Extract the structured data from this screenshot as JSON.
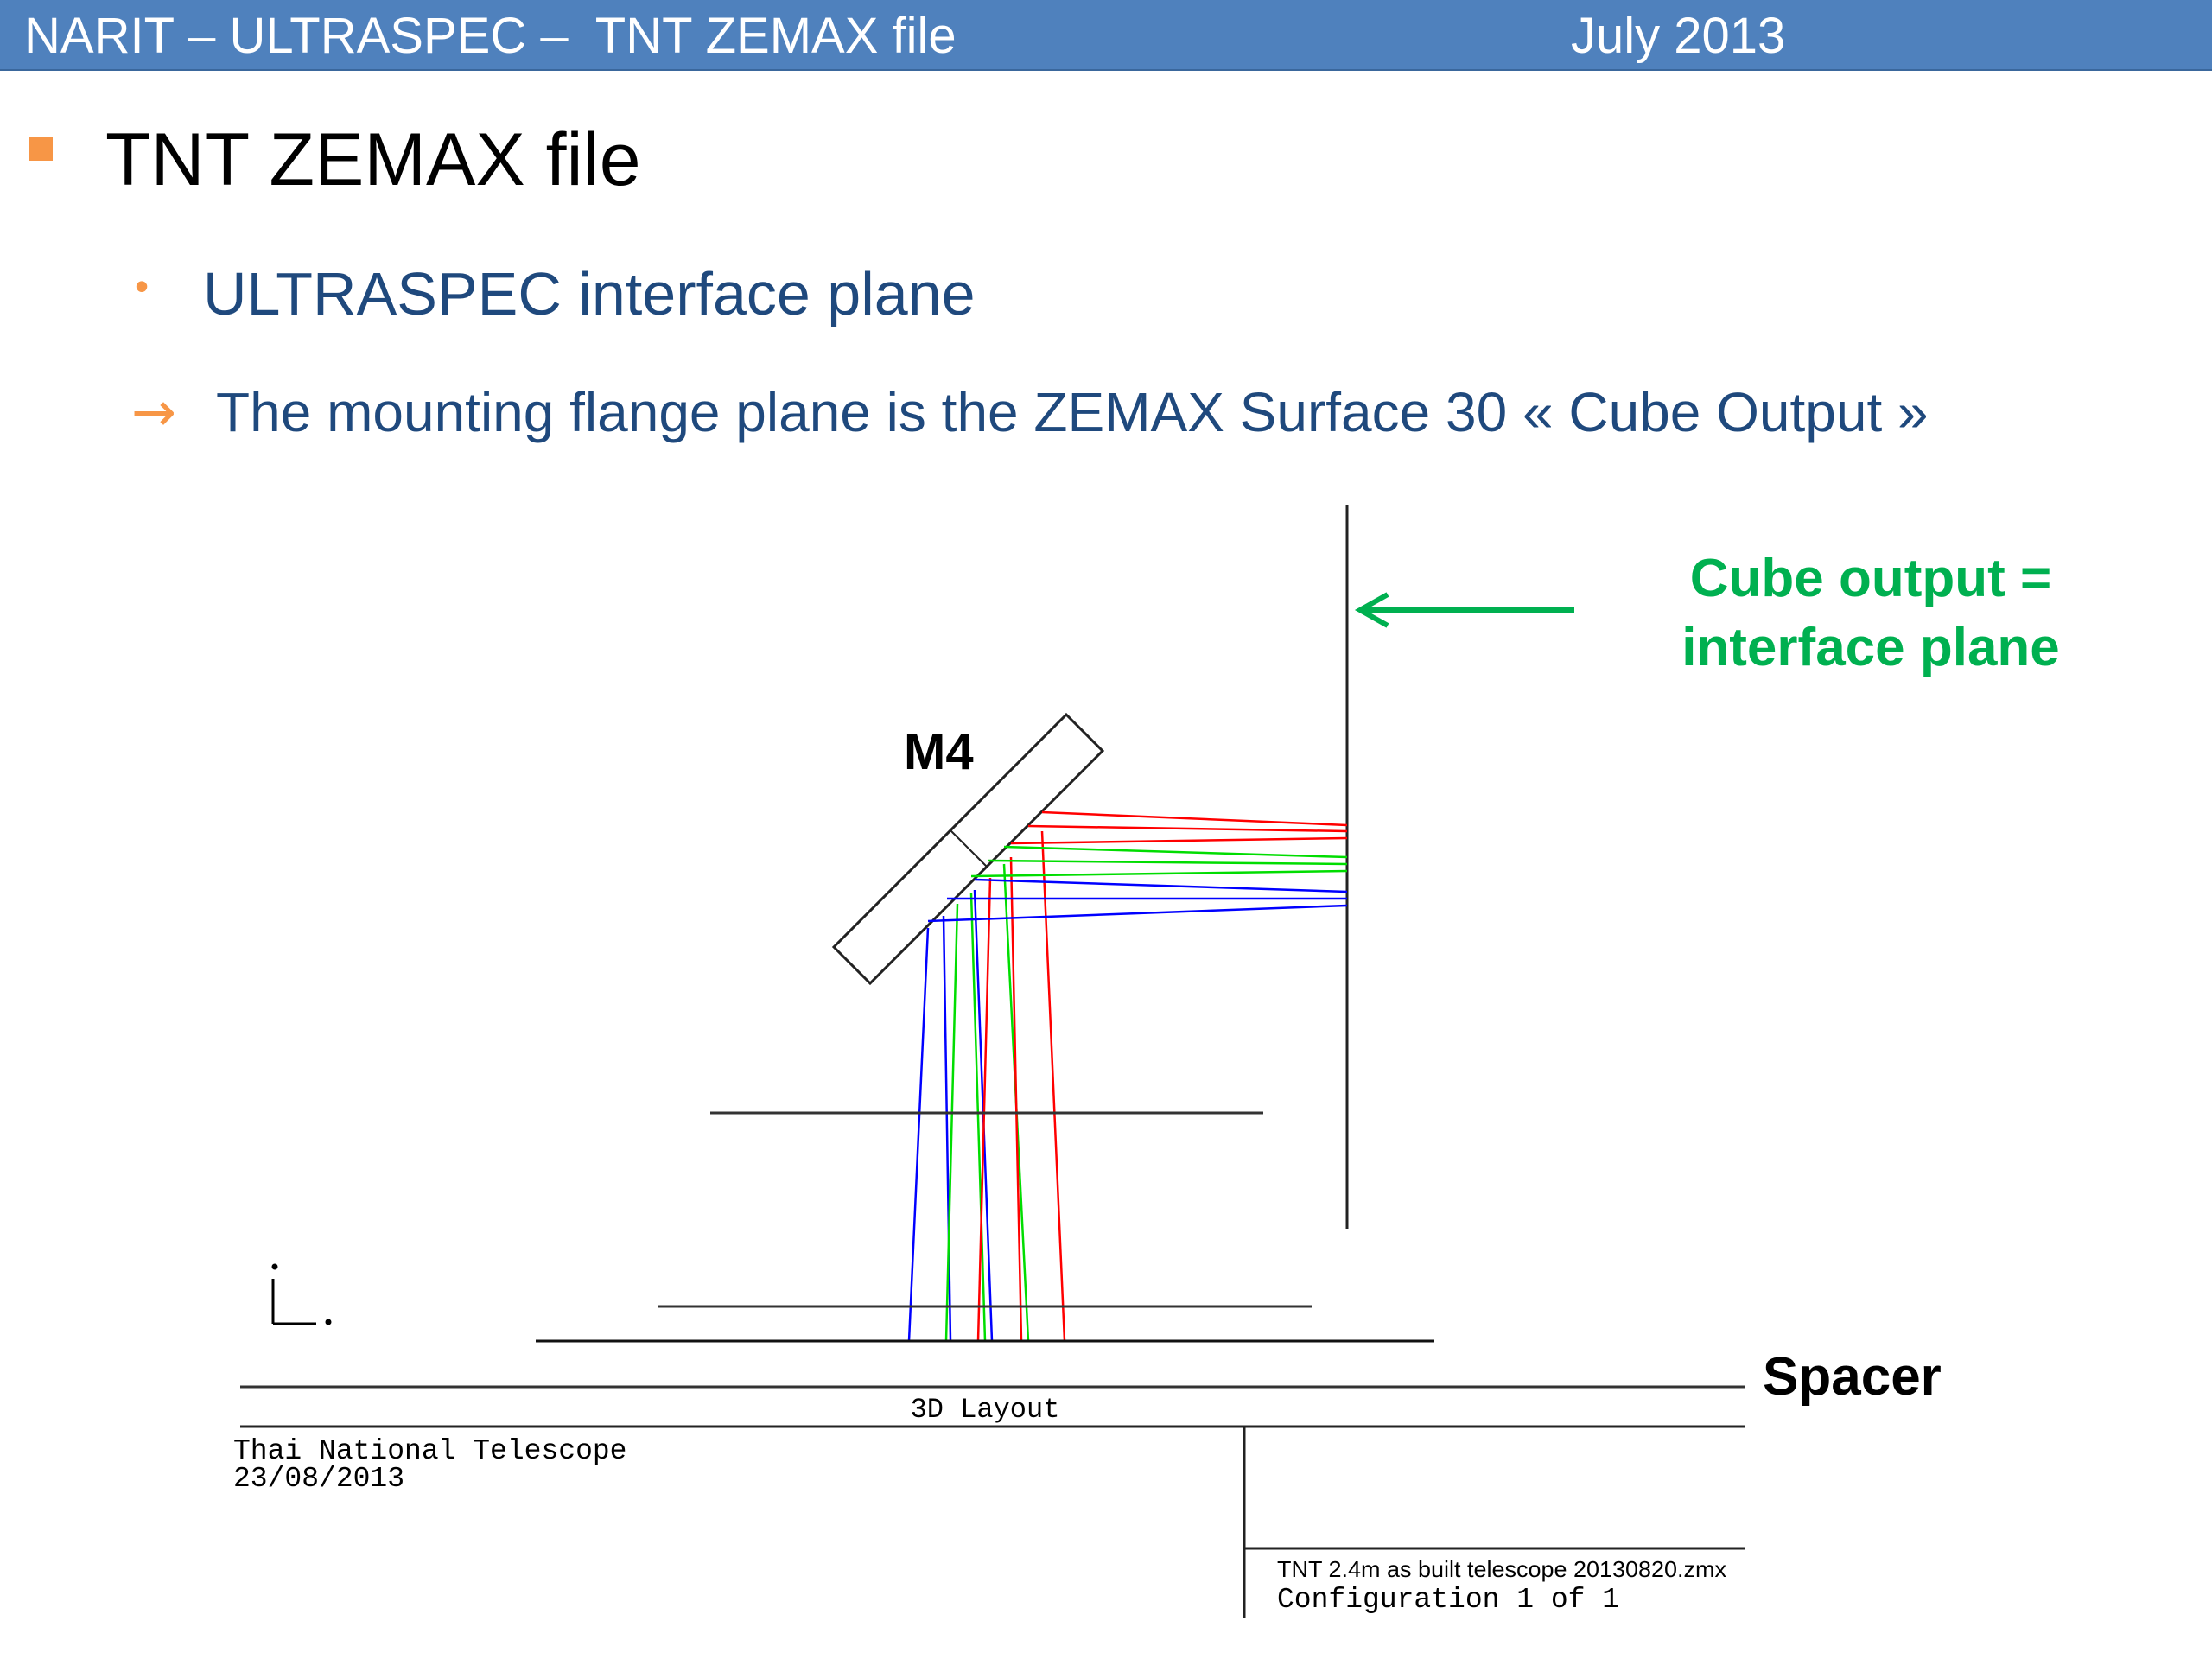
{
  "header": {
    "title": "NARIT – ULTRASPEC –  TNT ZEMAX file",
    "date": "July 2013",
    "background_color": "#4f81bd"
  },
  "main": {
    "heading": "TNT ZEMAX file",
    "subheading": "ULTRASPEC interface plane",
    "arrow_bullet": "→",
    "arrow_text": "The mounting flange plane is the ZEMAX Surface 30 « Cube Output »",
    "bullet_color": "#f79646",
    "text_color": "#1f497d"
  },
  "diagram": {
    "mirror_label": "M4",
    "callout_line1": "Cube output =",
    "callout_line2": "interface plane",
    "callout_color": "#00b050",
    "spacer_label": "Spacer",
    "ray_colors": {
      "red": "#ff0000",
      "green": "#00dd00",
      "blue": "#0000ff"
    },
    "footer": {
      "title": "3D Layout",
      "org": "Thai National Telescope",
      "date": "23/08/2013",
      "file": "TNT 2.4m as built telescope 20130820.zmx",
      "configuration": "Configuration 1 of 1"
    }
  }
}
